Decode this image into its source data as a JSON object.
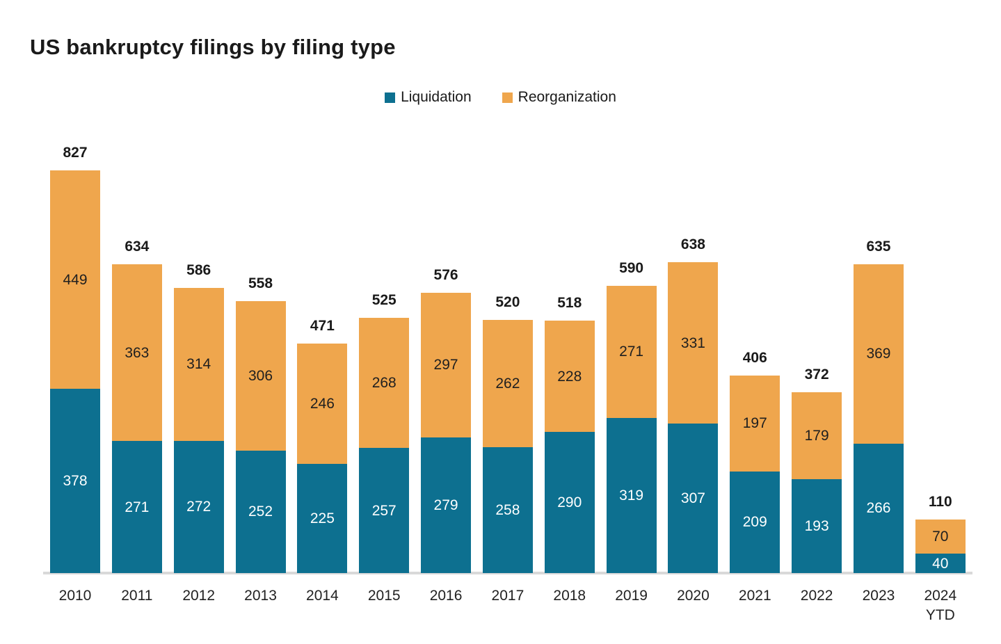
{
  "title": "US bankruptcy filings by filing type",
  "legend": {
    "items": [
      {
        "label": "Liquidation",
        "color": "#0d7090"
      },
      {
        "label": "Reorganization",
        "color": "#efa64d"
      }
    ]
  },
  "colors": {
    "liquidation": "#0d7090",
    "reorganization": "#efa64d",
    "axis_line": "#d9d9d9",
    "total_label": "#1a1a1a",
    "label_on_orange": "#1f1f1f",
    "label_on_teal": "#ffffff"
  },
  "chart_data": {
    "type": "bar",
    "stacked": true,
    "title": "US bankruptcy filings by filing type",
    "xlabel": "",
    "ylabel": "",
    "ylim": [
      0,
      827
    ],
    "grid": false,
    "legend_position": "top-center",
    "categories": [
      "2010",
      "2011",
      "2012",
      "2013",
      "2014",
      "2015",
      "2016",
      "2017",
      "2018",
      "2019",
      "2020",
      "2021",
      "2022",
      "2023",
      "2024\nYTD"
    ],
    "series": [
      {
        "name": "Liquidation",
        "color": "#0d7090",
        "values": [
          378,
          271,
          272,
          252,
          225,
          257,
          279,
          258,
          290,
          319,
          307,
          209,
          193,
          266,
          40
        ]
      },
      {
        "name": "Reorganization",
        "color": "#efa64d",
        "values": [
          449,
          363,
          314,
          306,
          246,
          268,
          297,
          262,
          228,
          271,
          331,
          197,
          179,
          369,
          70
        ]
      }
    ],
    "totals": [
      827,
      634,
      586,
      558,
      471,
      525,
      576,
      520,
      518,
      590,
      638,
      406,
      372,
      635,
      110
    ]
  }
}
